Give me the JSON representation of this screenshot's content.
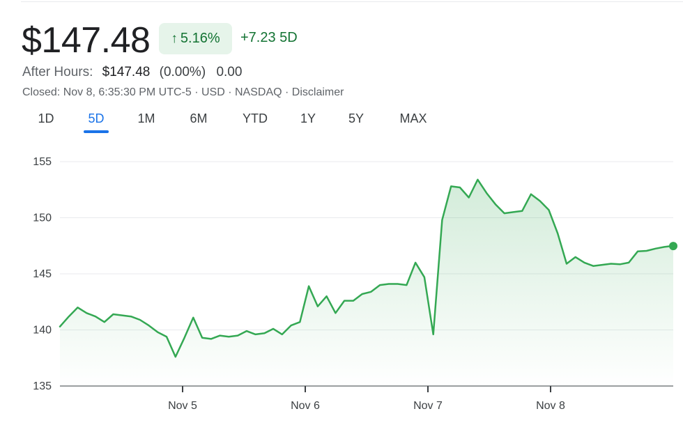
{
  "quote": {
    "price": "$147.48",
    "change_percent": "5.16%",
    "arrow_icon": "arrow-up-icon",
    "change_abs": "+7.23 5D",
    "up_color": "#137333"
  },
  "after_hours": {
    "label": "After Hours:",
    "price": "$147.48",
    "percent": "(0.00%)",
    "change": "0.00"
  },
  "status_line": "Closed: Nov 8, 6:35:30 PM UTC-5 · USD · NASDAQ · Disclaimer",
  "tabs": [
    {
      "label": "1D"
    },
    {
      "label": "5D",
      "active": true
    },
    {
      "label": "1M"
    },
    {
      "label": "6M"
    },
    {
      "label": "YTD"
    },
    {
      "label": "1Y"
    },
    {
      "label": "5Y"
    },
    {
      "label": "MAX"
    }
  ],
  "chart_data": {
    "type": "area",
    "title": "",
    "xlabel": "",
    "ylabel": "",
    "ylim": [
      135,
      155
    ],
    "yticks": [
      155,
      150,
      145,
      140,
      135
    ],
    "x_tick_labels": [
      "Nov 5",
      "Nov 6",
      "Nov 7",
      "Nov 8"
    ],
    "grid": true,
    "line_color": "#34a853",
    "series": [
      {
        "values": [
          140.3,
          141.2,
          142.0,
          141.5,
          141.2,
          140.7,
          141.4,
          141.3,
          141.2,
          140.9,
          140.4,
          139.8,
          139.4,
          137.6,
          139.3,
          141.1,
          139.3,
          139.2,
          139.5,
          139.4,
          139.5,
          139.9,
          139.6,
          139.7,
          140.1,
          139.6,
          140.4,
          140.7,
          143.9,
          142.1,
          143.0,
          141.5,
          142.6,
          142.6,
          143.2,
          143.4,
          144.0,
          144.1,
          144.1,
          144.0,
          146.0,
          144.7,
          139.6,
          149.8,
          152.8,
          152.7,
          151.8,
          153.4,
          152.2,
          151.2,
          150.4,
          150.5,
          150.6,
          152.1,
          151.5,
          150.7,
          148.6,
          145.9,
          146.5,
          146.0,
          145.7,
          145.8,
          145.9,
          145.85,
          146.0,
          147.0,
          147.05,
          147.25,
          147.4,
          147.5
        ],
        "last_value": 147.48
      }
    ]
  }
}
